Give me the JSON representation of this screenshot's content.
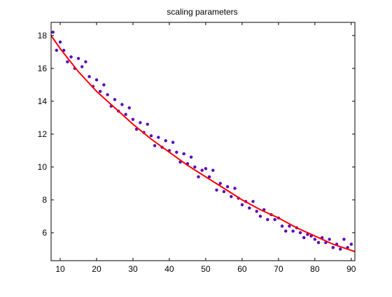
{
  "chart_data": {
    "type": "scatter",
    "title": "scaling parameters",
    "xlabel": "",
    "ylabel": "",
    "xlim": [
      7.5,
      91
    ],
    "ylim": [
      4.3,
      18.8
    ],
    "xticks": [
      10,
      20,
      30,
      40,
      50,
      60,
      70,
      80,
      90
    ],
    "yticks": [
      6,
      8,
      10,
      12,
      14,
      16,
      18
    ],
    "grid": false,
    "legend": null,
    "series": [
      {
        "kind": "points",
        "color": "#5500bb",
        "x": [
          8,
          9,
          10,
          11,
          12,
          13,
          14,
          15,
          16,
          17,
          18,
          19,
          20,
          21,
          22,
          23,
          24,
          25,
          26,
          27,
          28,
          29,
          30,
          31,
          32,
          33,
          34,
          35,
          36,
          37,
          38,
          39,
          40,
          41,
          42,
          43,
          44,
          45,
          46,
          47,
          48,
          49,
          50,
          51,
          52,
          53,
          54,
          55,
          56,
          57,
          58,
          59,
          60,
          61,
          62,
          63,
          64,
          65,
          66,
          67,
          68,
          69,
          70,
          71,
          72,
          73,
          74,
          75,
          76,
          77,
          78,
          79,
          80,
          81,
          82,
          83,
          84,
          85,
          86,
          87,
          88,
          89,
          90
        ],
        "y": [
          18.2,
          17.1,
          17.6,
          17.1,
          16.4,
          16.7,
          16.0,
          16.6,
          16.1,
          16.4,
          15.5,
          14.9,
          15.3,
          14.6,
          15.0,
          14.4,
          13.7,
          14.1,
          13.4,
          13.8,
          13.2,
          13.6,
          12.9,
          12.3,
          12.7,
          12.1,
          12.6,
          11.9,
          11.3,
          11.8,
          11.2,
          11.6,
          11.0,
          11.5,
          10.9,
          10.3,
          10.8,
          10.2,
          10.6,
          10.0,
          9.4,
          9.8,
          9.9,
          9.4,
          9.8,
          8.6,
          9.0,
          8.5,
          8.8,
          8.2,
          8.7,
          8.1,
          7.7,
          7.9,
          7.5,
          7.9,
          7.3,
          7.0,
          7.4,
          6.8,
          7.1,
          6.8,
          6.9,
          6.4,
          6.1,
          6.4,
          6.1,
          6.3,
          6.0,
          5.7,
          5.9,
          5.8,
          5.6,
          5.4,
          5.7,
          5.4,
          5.6,
          5.1,
          5.3,
          5.0,
          5.6,
          5.1,
          5.3
        ]
      },
      {
        "kind": "fit-line",
        "color": "#ff0000",
        "x": [
          7.5,
          10,
          15,
          20,
          25,
          30,
          35,
          40,
          45,
          50,
          55,
          60,
          65,
          70,
          75,
          80,
          85,
          91
        ],
        "y": [
          18.0,
          17.2,
          15.8,
          14.6,
          13.6,
          12.6,
          11.7,
          10.9,
          10.1,
          9.4,
          8.7,
          8.0,
          7.4,
          6.9,
          6.3,
          5.8,
          5.3,
          4.85
        ]
      }
    ]
  }
}
